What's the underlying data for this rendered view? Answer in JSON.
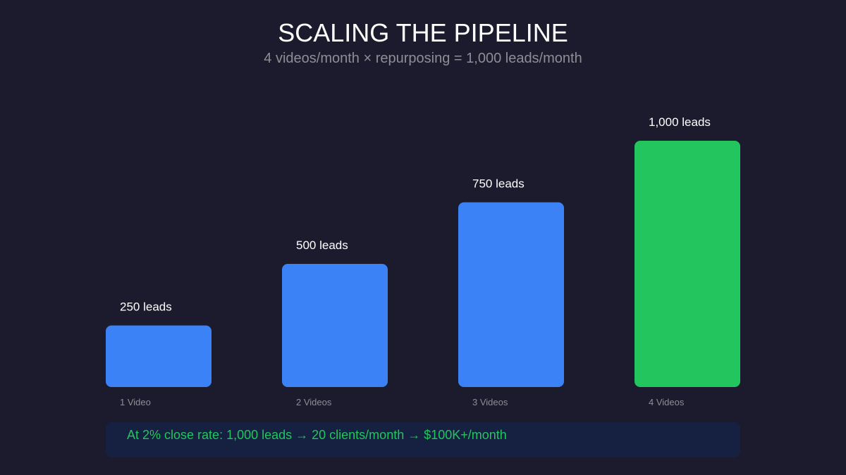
{
  "chart_data": {
    "type": "bar",
    "title": "SCALING THE PIPELINE",
    "subtitle": "4 videos/month × repurposing = 1,000 leads/month",
    "categories": [
      "1 Video",
      "2 Videos",
      "3 Videos",
      "4 Videos"
    ],
    "values": [
      250,
      500,
      750,
      1000
    ],
    "data_labels": [
      "250 leads",
      "500 leads",
      "750 leads",
      "1,000 leads"
    ],
    "colors": [
      "#3b82f6",
      "#3b82f6",
      "#3b82f6",
      "#22c55e"
    ],
    "ylim": [
      0,
      1000
    ],
    "grid": false
  },
  "note": "At 2% close rate: 1,000 leads → 20 clients/month → $100K+/month"
}
